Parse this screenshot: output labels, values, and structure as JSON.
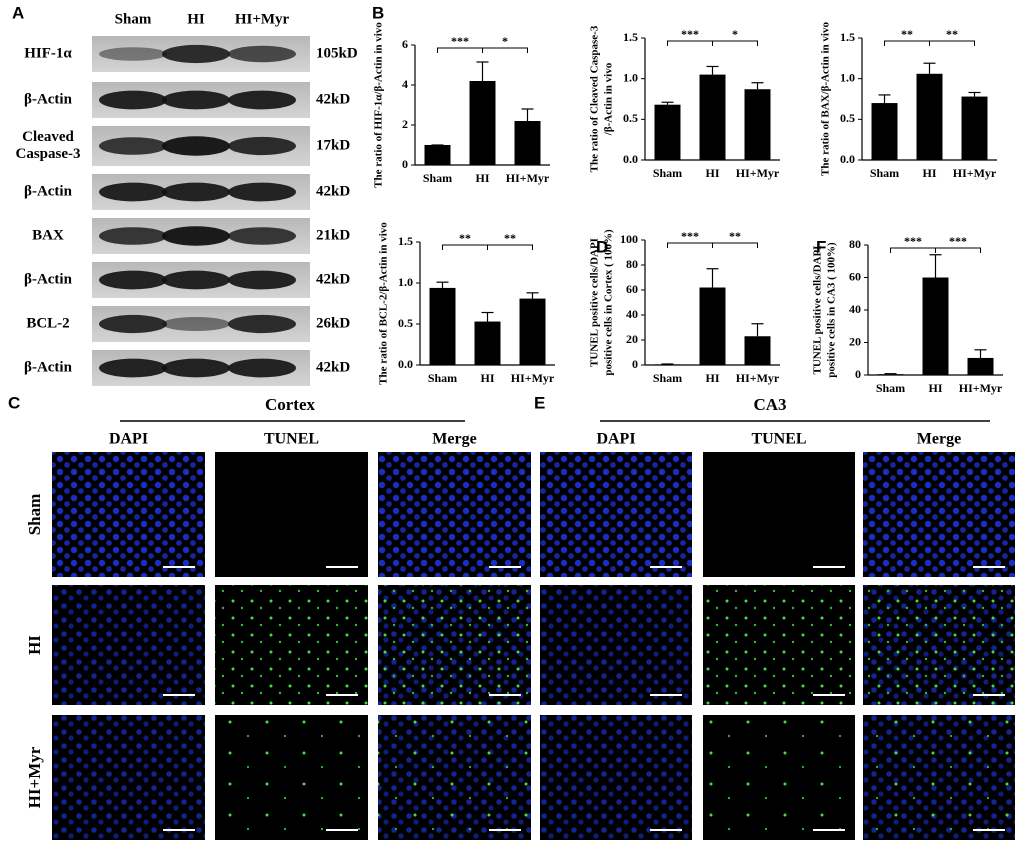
{
  "panel_labels": [
    "A",
    "B",
    "C",
    "D",
    "E",
    "F"
  ],
  "western_blot": {
    "columns": [
      "Sham",
      "HI",
      "HI+Myr"
    ],
    "rows": [
      {
        "label": "HIF-1α",
        "size": "105kD"
      },
      {
        "label": "β-Actin",
        "size": "42kD"
      },
      {
        "label": "Cleaved Caspase-3",
        "size": "17kD"
      },
      {
        "label": "β-Actin",
        "size": "42kD"
      },
      {
        "label": "BAX",
        "size": "21kD"
      },
      {
        "label": "β-Actin",
        "size": "42kD"
      },
      {
        "label": "BCL-2",
        "size": "26kD"
      },
      {
        "label": "β-Actin",
        "size": "42kD"
      }
    ]
  },
  "chart_data": [
    {
      "type": "bar",
      "ylabel": [
        "The ratio of HIF-1α/β-Actin in vivo"
      ],
      "categories": [
        "Sham",
        "HI",
        "HI+Myr"
      ],
      "values": [
        1,
        4.2,
        2.2
      ],
      "errors": [
        0,
        0.95,
        0.6
      ],
      "color": "#000000",
      "ylim": [
        0,
        6
      ],
      "yticks": [
        0,
        2,
        4,
        6
      ],
      "significance": [
        "***",
        "*"
      ]
    },
    {
      "type": "bar",
      "ylabel": [
        "The ratio of Cleaved Caspase-3",
        "/β-Actin in vivo"
      ],
      "categories": [
        "Sham",
        "HI",
        "HI+Myr"
      ],
      "values": [
        0.68,
        1.05,
        0.87
      ],
      "errors": [
        0.03,
        0.1,
        0.08
      ],
      "color": "#000000",
      "ylim": [
        0,
        1.5
      ],
      "yticks": [
        {
          "value": 0,
          "label": "0.0"
        },
        0.5,
        {
          "value": 1,
          "label": "1.0"
        },
        1.5
      ],
      "significance": [
        "***",
        "*"
      ]
    },
    {
      "type": "bar",
      "ylabel": [
        "The ratio of BAX/β-Actin in vivo"
      ],
      "categories": [
        "Sham",
        "HI",
        "HI+Myr"
      ],
      "values": [
        0.7,
        1.06,
        0.78
      ],
      "errors": [
        0.1,
        0.13,
        0.05
      ],
      "color": "#000000",
      "ylim": [
        0,
        1.5
      ],
      "yticks": [
        {
          "value": 0,
          "label": "0.0"
        },
        0.5,
        {
          "value": 1,
          "label": "1.0"
        },
        1.5
      ],
      "significance": [
        "**",
        "**"
      ]
    },
    {
      "type": "bar",
      "ylabel": [
        "The ratio of BCL-2/β-Actin in vivo"
      ],
      "categories": [
        "Sham",
        "HI",
        "HI+Myr"
      ],
      "values": [
        0.94,
        0.53,
        0.81
      ],
      "errors": [
        0.07,
        0.11,
        0.07
      ],
      "color": "#000000",
      "ylim": [
        0,
        1.5
      ],
      "yticks": [
        {
          "value": 0,
          "label": "0.0"
        },
        0.5,
        {
          "value": 1,
          "label": "1.0"
        },
        1.5
      ],
      "significance": [
        "**",
        "**"
      ]
    },
    {
      "type": "bar",
      "ylabel": [
        "TUNEL positive cells/DAPI",
        "positive cells in Cortex ( 100%)"
      ],
      "categories": [
        "Sham",
        "HI",
        "HI+Myr"
      ],
      "values": [
        0.5,
        62,
        23
      ],
      "errors": [
        0.3,
        15,
        10
      ],
      "color": "#000000",
      "ylim": [
        0,
        100
      ],
      "yticks": [
        0,
        20,
        40,
        60,
        80,
        100
      ],
      "significance": [
        "***",
        "**"
      ]
    },
    {
      "type": "bar",
      "ylabel": [
        "TUNEL positive cells/DAPI",
        "positive cells in CA3 ( 100%)"
      ],
      "categories": [
        "Sham",
        "HI",
        "HI+Myr"
      ],
      "values": [
        0.5,
        60,
        10.5
      ],
      "errors": [
        0.3,
        14,
        5
      ],
      "color": "#000000",
      "ylim": [
        0,
        80
      ],
      "yticks": [
        0,
        20,
        40,
        60,
        80
      ],
      "significance": [
        "***",
        "***"
      ]
    }
  ],
  "microscopy": {
    "columns": [
      "DAPI",
      "TUNEL",
      "Merge"
    ],
    "rows": [
      "Sham",
      "HI",
      "HI+Myr"
    ],
    "sections": [
      {
        "title": "Cortex"
      },
      {
        "title": "CA3"
      }
    ]
  }
}
